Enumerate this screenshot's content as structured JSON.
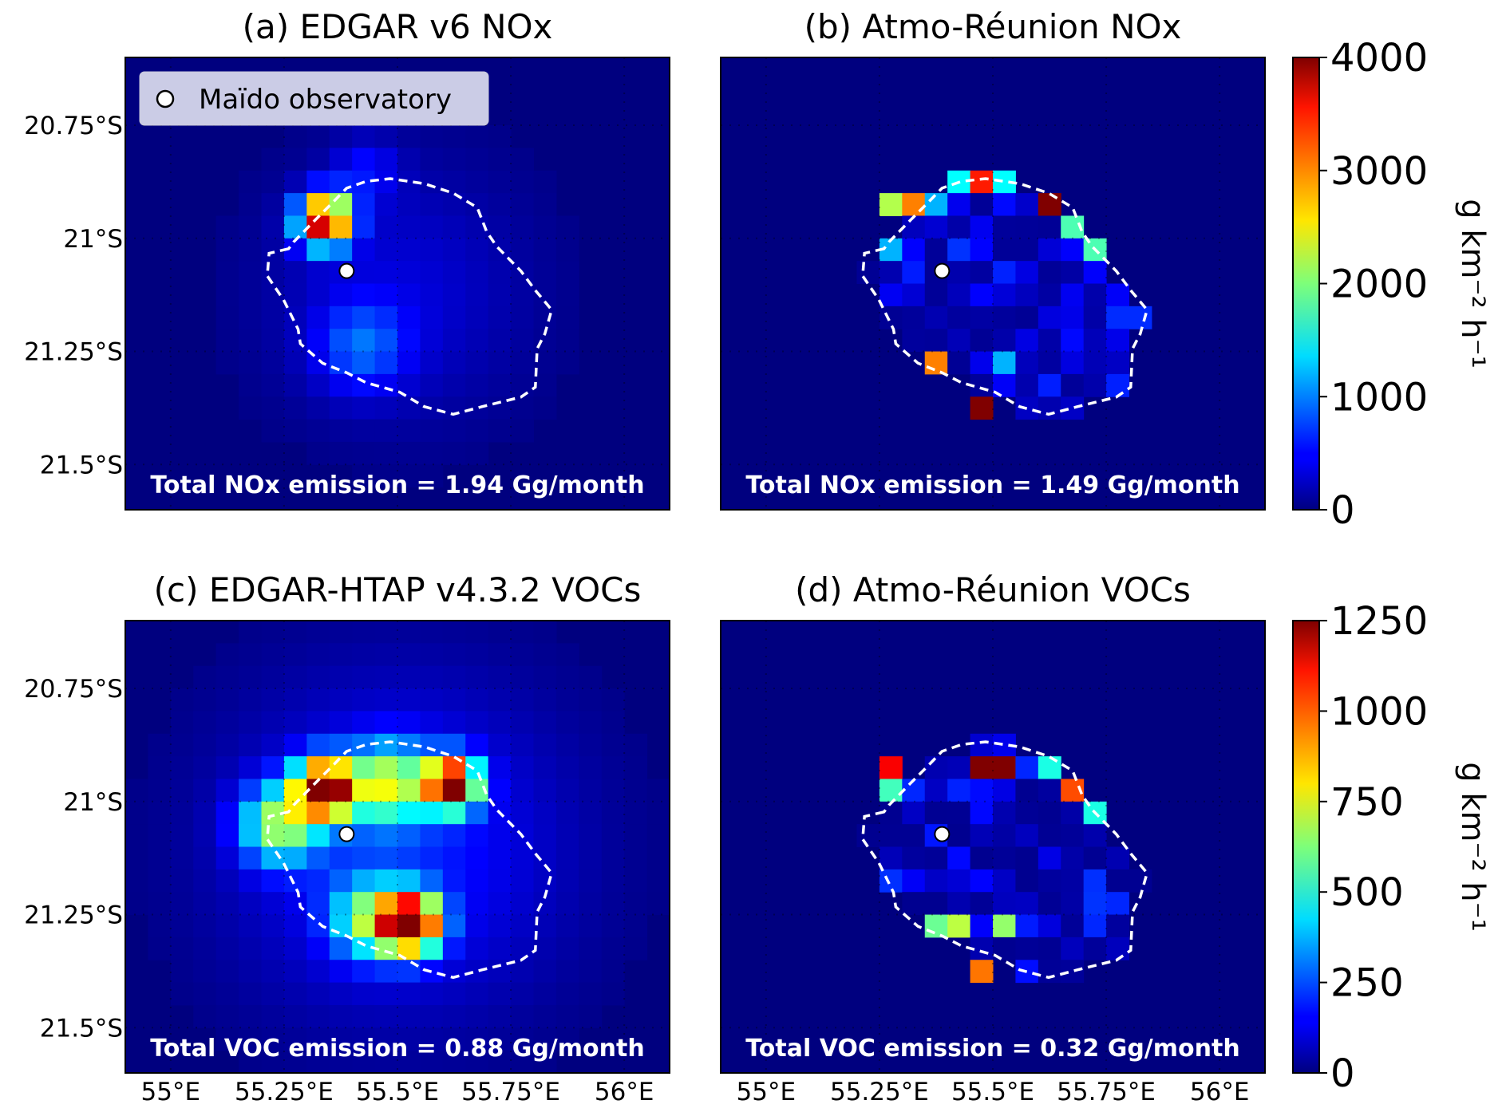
{
  "chart_data": [
    {
      "id": "a",
      "type": "heatmap",
      "title": "(a) EDGAR v6 NOx",
      "total_label": "Total NOx emission = 1.94 Gg/month",
      "colorbar_max": 4000,
      "style": "smooth",
      "hotspots": [
        {
          "lon": 55.34,
          "lat": 20.96,
          "value": 4000,
          "sigma": 0.04
        },
        {
          "lon": 55.42,
          "lat": 21.24,
          "value": 700,
          "sigma": 0.07
        },
        {
          "lon": 55.43,
          "lat": 20.85,
          "value": 450,
          "sigma": 0.05
        },
        {
          "lon": 55.5,
          "lat": 21.12,
          "value": 350,
          "sigma": 0.2
        }
      ],
      "hot_cells": []
    },
    {
      "id": "b",
      "type": "heatmap",
      "title": "(b) Atmo-Réunion NOx",
      "total_label": "Total NOx emission = 1.49 Gg/month",
      "colorbar_max": 4000,
      "style": "gridded",
      "island_base_range": [
        80,
        700
      ],
      "hot_cells": [
        [
          55.31,
          20.94,
          3000
        ],
        [
          55.29,
          20.95,
          2200
        ],
        [
          55.47,
          20.9,
          3400
        ],
        [
          55.62,
          20.92,
          4000
        ],
        [
          55.65,
          20.96,
          1800
        ],
        [
          55.72,
          21.05,
          1800
        ],
        [
          55.38,
          21.3,
          3000
        ],
        [
          55.48,
          21.35,
          4000
        ],
        [
          55.52,
          21.28,
          1200
        ],
        [
          55.25,
          21.04,
          1200
        ],
        [
          55.42,
          20.9,
          1500
        ],
        [
          55.52,
          20.9,
          1500
        ],
        [
          55.36,
          20.91,
          1200
        ]
      ]
    },
    {
      "id": "c",
      "type": "heatmap",
      "title": "(c) EDGAR-HTAP v4.3.2 VOCs",
      "total_label": "Total VOC emission = 0.88 Gg/month",
      "colorbar_max": 1250,
      "style": "smooth",
      "hotspots": [
        {
          "lon": 55.34,
          "lat": 20.97,
          "value": 1250,
          "sigma": 0.045
        },
        {
          "lon": 55.62,
          "lat": 20.96,
          "value": 1250,
          "sigma": 0.04
        },
        {
          "lon": 55.53,
          "lat": 21.27,
          "value": 1250,
          "sigma": 0.045
        },
        {
          "lon": 55.48,
          "lat": 20.96,
          "value": 600,
          "sigma": 0.06
        },
        {
          "lon": 55.24,
          "lat": 21.05,
          "value": 600,
          "sigma": 0.06
        },
        {
          "lon": 55.44,
          "lat": 21.26,
          "value": 500,
          "sigma": 0.06
        },
        {
          "lon": 55.5,
          "lat": 21.1,
          "value": 200,
          "sigma": 0.25
        }
      ],
      "hot_cells": []
    },
    {
      "id": "d",
      "type": "heatmap",
      "title": "(d) Atmo-Réunion VOCs",
      "total_label": "Total VOC emission = 0.32 Gg/month",
      "colorbar_max": 1250,
      "style": "gridded",
      "island_base_range": [
        20,
        220
      ],
      "hot_cells": [
        [
          55.46,
          20.91,
          1250
        ],
        [
          55.51,
          20.91,
          1250
        ],
        [
          55.28,
          20.95,
          1100
        ],
        [
          55.65,
          20.96,
          1000
        ],
        [
          55.47,
          21.36,
          950
        ],
        [
          55.41,
          21.28,
          700
        ],
        [
          55.51,
          21.27,
          650
        ],
        [
          55.3,
          21.0,
          550
        ],
        [
          55.6,
          20.91,
          500
        ],
        [
          55.72,
          21.05,
          500
        ],
        [
          55.36,
          21.28,
          600
        ]
      ]
    }
  ],
  "axes": {
    "xlim": [
      54.9,
      56.1
    ],
    "ylim_south": [
      20.6,
      21.6
    ],
    "x_ticks": [
      {
        "value": 55.0,
        "label": "55°E"
      },
      {
        "value": 55.25,
        "label": "55.25°E"
      },
      {
        "value": 55.5,
        "label": "55.5°E"
      },
      {
        "value": 55.75,
        "label": "55.75°E"
      },
      {
        "value": 56.0,
        "label": "56°E"
      }
    ],
    "y_ticks": [
      {
        "value": 20.75,
        "label": "20.75°S"
      },
      {
        "value": 21.0,
        "label": "21°S"
      },
      {
        "value": 21.25,
        "label": "21.25°S"
      },
      {
        "value": 21.5,
        "label": "21.5°S"
      }
    ],
    "grid": "dotted"
  },
  "colorbars": [
    {
      "ticks": [
        "0",
        "1000",
        "2000",
        "3000",
        "4000"
      ],
      "values": [
        0,
        1000,
        2000,
        3000,
        4000
      ],
      "label": "g km⁻² h⁻¹"
    },
    {
      "ticks": [
        "0",
        "250",
        "500",
        "750",
        "1000",
        "1250"
      ],
      "values": [
        0,
        250,
        500,
        750,
        1000,
        1250
      ],
      "label": "g km⁻² h⁻¹"
    }
  ],
  "legend": {
    "label": "Maïdo observatory",
    "placement": "top-left"
  },
  "maido": {
    "lon": 55.388,
    "lat": 21.072
  },
  "island_outline": [
    [
      55.26,
      21.023
    ],
    [
      55.217,
      21.033
    ],
    [
      55.213,
      21.083
    ],
    [
      55.249,
      21.136
    ],
    [
      55.281,
      21.201
    ],
    [
      55.286,
      21.233
    ],
    [
      55.335,
      21.276
    ],
    [
      55.388,
      21.297
    ],
    [
      55.431,
      21.319
    ],
    [
      55.505,
      21.34
    ],
    [
      55.559,
      21.372
    ],
    [
      55.623,
      21.389
    ],
    [
      55.687,
      21.372
    ],
    [
      55.772,
      21.351
    ],
    [
      55.804,
      21.329
    ],
    [
      55.808,
      21.244
    ],
    [
      55.825,
      21.211
    ],
    [
      55.84,
      21.158
    ],
    [
      55.804,
      21.115
    ],
    [
      55.772,
      21.072
    ],
    [
      55.719,
      21.018
    ],
    [
      55.697,
      20.986
    ],
    [
      55.676,
      20.932
    ],
    [
      55.623,
      20.9
    ],
    [
      55.559,
      20.879
    ],
    [
      55.484,
      20.868
    ],
    [
      55.431,
      20.874
    ],
    [
      55.388,
      20.889
    ],
    [
      55.356,
      20.922
    ],
    [
      55.324,
      20.954
    ],
    [
      55.271,
      21.008
    ]
  ]
}
